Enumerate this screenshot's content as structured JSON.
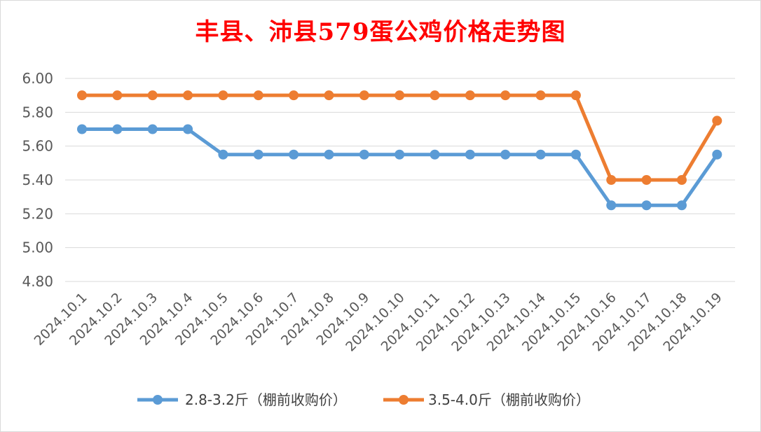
{
  "chart_data": {
    "type": "line",
    "title": "丰县、沛县579蛋公鸡价格走势图",
    "xlabel": "",
    "ylabel": "",
    "categories": [
      "2024.10.1",
      "2024.10.2",
      "2024.10.3",
      "2024.10.4",
      "2024.10.5",
      "2024.10.6",
      "2024.10.7",
      "2024.10.8",
      "2024.10.9",
      "2024.10.10",
      "2024.10.11",
      "2024.10.12",
      "2024.10.13",
      "2024.10.14",
      "2024.10.15",
      "2024.10.16",
      "2024.10.17",
      "2024.10.18",
      "2024.10.19"
    ],
    "ylim": [
      4.8,
      6.0
    ],
    "yticks": [
      "4.80",
      "5.00",
      "5.20",
      "5.40",
      "5.60",
      "5.80",
      "6.00"
    ],
    "grid": true,
    "legend_position": "bottom",
    "series": [
      {
        "name": "2.8-3.2斤（棚前收购价）",
        "color": "#5b9bd5",
        "values": [
          5.7,
          5.7,
          5.7,
          5.7,
          5.55,
          5.55,
          5.55,
          5.55,
          5.55,
          5.55,
          5.55,
          5.55,
          5.55,
          5.55,
          5.55,
          5.25,
          5.25,
          5.25,
          5.55
        ]
      },
      {
        "name": "3.5-4.0斤（棚前收购价）",
        "color": "#ed7d31",
        "values": [
          5.9,
          5.9,
          5.9,
          5.9,
          5.9,
          5.9,
          5.9,
          5.9,
          5.9,
          5.9,
          5.9,
          5.9,
          5.9,
          5.9,
          5.9,
          5.4,
          5.4,
          5.4,
          5.75
        ]
      }
    ]
  }
}
